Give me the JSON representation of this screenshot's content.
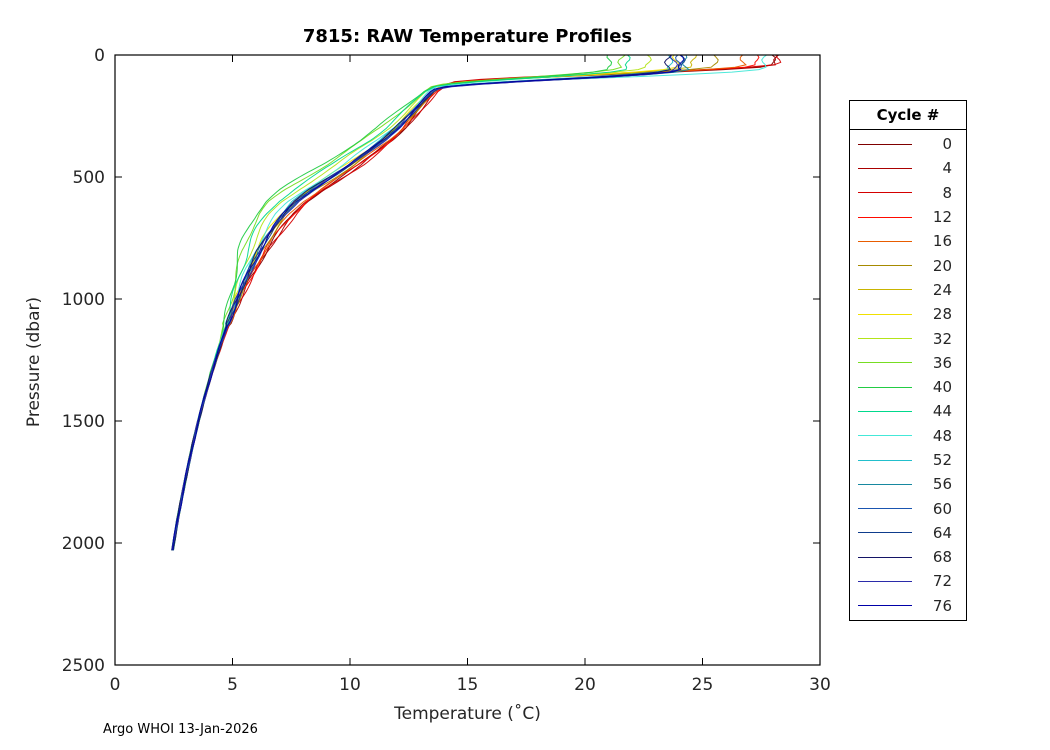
{
  "footer": "Argo WHOI 13-Jan-2026",
  "chart_data": {
    "type": "line",
    "title": "7815: RAW Temperature Profiles",
    "xlabel": "Temperature (˚C)",
    "ylabel": "Pressure (dbar)",
    "xlim": [
      0,
      30
    ],
    "ylim": [
      0,
      2500
    ],
    "y_inverted": true,
    "grid": false,
    "x_ticks": [
      0,
      5,
      10,
      15,
      20,
      25,
      30
    ],
    "y_ticks": [
      0,
      500,
      1000,
      1500,
      2000,
      2500
    ],
    "legend_title": "Cycle #",
    "legend_position": "right-outside",
    "base_profile": {
      "pressure": [
        100,
        120,
        150,
        200,
        250,
        300,
        350,
        400,
        450,
        500,
        550,
        600,
        650,
        700,
        750,
        800,
        850,
        900,
        950,
        1000,
        1100,
        1200,
        1300,
        1400,
        1500,
        1600,
        1700,
        1800,
        1900,
        2000,
        2030
      ],
      "temp": [
        14.6,
        14.0,
        13.5,
        13.0,
        12.5,
        12.0,
        11.4,
        10.7,
        10.0,
        9.2,
        8.4,
        7.7,
        7.2,
        6.8,
        6.45,
        6.15,
        5.9,
        5.65,
        5.42,
        5.2,
        4.8,
        4.45,
        4.12,
        3.82,
        3.55,
        3.3,
        3.08,
        2.87,
        2.67,
        2.5,
        2.45
      ]
    },
    "series": [
      {
        "cycle": 0,
        "color": "#7F0000",
        "surface_temp": 27.9,
        "mld": 40,
        "offset": 0.45,
        "max_p": 2030
      },
      {
        "cycle": 4,
        "color": "#AA0000",
        "surface_temp": 28.0,
        "mld": 38,
        "offset": 0.5,
        "max_p": 2025
      },
      {
        "cycle": 8,
        "color": "#D40000",
        "surface_temp": 28.2,
        "mld": 35,
        "offset": 0.55,
        "max_p": 2030
      },
      {
        "cycle": 12,
        "color": "#FF0A00",
        "surface_temp": 27.3,
        "mld": 40,
        "offset": 0.4,
        "max_p": 2035
      },
      {
        "cycle": 16,
        "color": "#E85C00",
        "surface_temp": 26.6,
        "mld": 42,
        "offset": 0.3,
        "max_p": 2030
      },
      {
        "cycle": 20,
        "color": "#A68A00",
        "surface_temp": 25.5,
        "mld": 45,
        "offset": 0.15,
        "max_p": 2025
      },
      {
        "cycle": 24,
        "color": "#C8B400",
        "surface_temp": 24.7,
        "mld": 45,
        "offset": 0.0,
        "max_p": 2030
      },
      {
        "cycle": 28,
        "color": "#F0E000",
        "surface_temp": 23.9,
        "mld": 48,
        "offset": -0.15,
        "max_p": 2030
      },
      {
        "cycle": 32,
        "color": "#B4E419",
        "surface_temp": 22.7,
        "mld": 50,
        "offset": -0.6,
        "max_p": 2035
      },
      {
        "cycle": 36,
        "color": "#77DD22",
        "surface_temp": 21.7,
        "mld": 52,
        "offset": -1.1,
        "max_p": 2030
      },
      {
        "cycle": 40,
        "color": "#22CC44",
        "surface_temp": 21.3,
        "mld": 55,
        "offset": -1.3,
        "max_p": 2025
      },
      {
        "cycle": 44,
        "color": "#00D98C",
        "surface_temp": 21.9,
        "mld": 55,
        "offset": -0.8,
        "max_p": 2030
      },
      {
        "cycle": 48,
        "color": "#44E8D8",
        "surface_temp": 27.6,
        "mld": 55,
        "offset": -0.3,
        "max_p": 2030
      },
      {
        "cycle": 52,
        "color": "#22BFCC",
        "surface_temp": 23.7,
        "mld": 58,
        "offset": -0.1,
        "max_p": 2035
      },
      {
        "cycle": 56,
        "color": "#1788A0",
        "surface_temp": 24.3,
        "mld": 60,
        "offset": 0.0,
        "max_p": 2030
      },
      {
        "cycle": 60,
        "color": "#1A55B0",
        "surface_temp": 23.9,
        "mld": 60,
        "offset": 0.05,
        "max_p": 2025
      },
      {
        "cycle": 64,
        "color": "#0E3C8C",
        "surface_temp": 24.1,
        "mld": 62,
        "offset": 0.0,
        "max_p": 2030
      },
      {
        "cycle": 68,
        "color": "#141466",
        "surface_temp": 23.6,
        "mld": 60,
        "offset": -0.05,
        "max_p": 2030
      },
      {
        "cycle": 72,
        "color": "#2B2BAA",
        "surface_temp": 23.8,
        "mld": 62,
        "offset": 0.05,
        "max_p": 2035
      },
      {
        "cycle": 76,
        "color": "#0000A8",
        "surface_temp": 24.0,
        "mld": 60,
        "offset": 0.0,
        "max_p": 2030
      }
    ]
  }
}
